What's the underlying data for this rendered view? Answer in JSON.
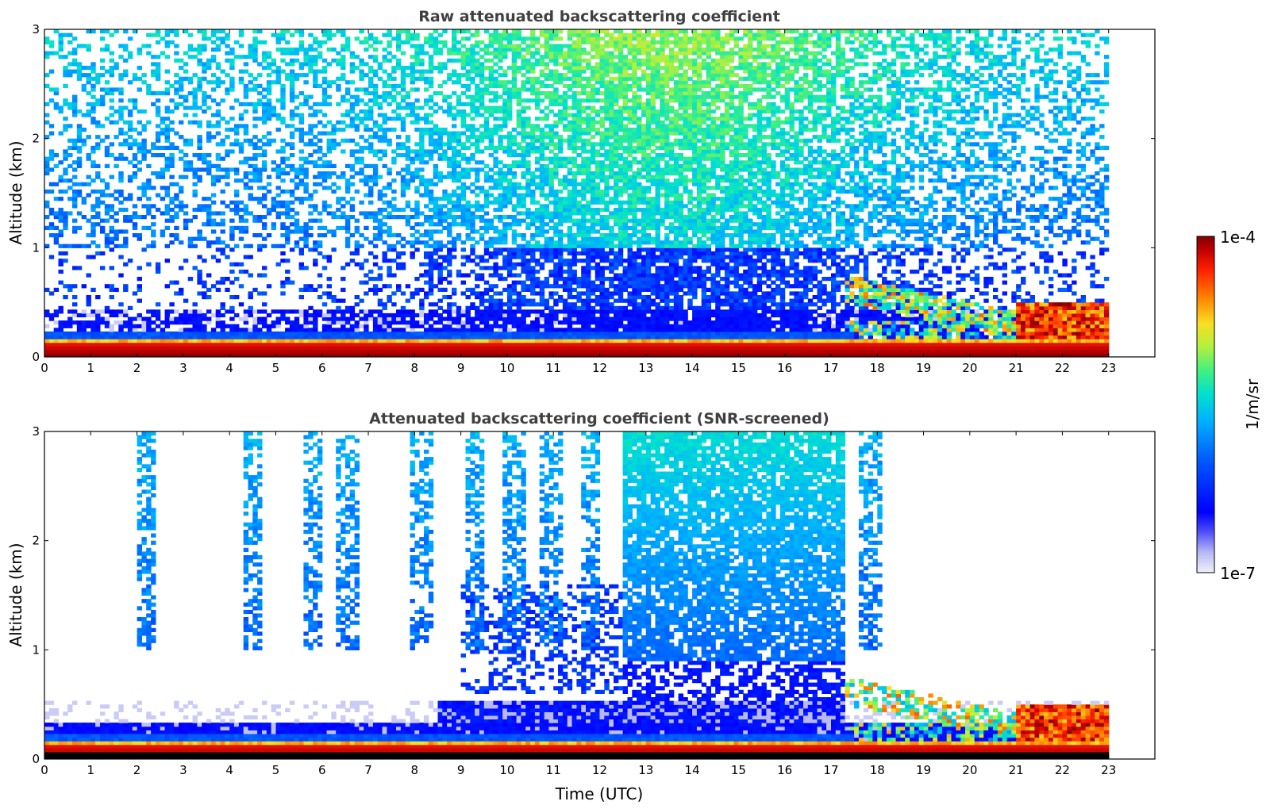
{
  "chart_data": [
    {
      "type": "heatmap",
      "title": "Raw attenuated backscattering coefficient",
      "xlabel": "",
      "ylabel": "Altitude (km)",
      "xlim": [
        0,
        24
      ],
      "ylim": [
        0,
        3
      ],
      "xticks": [
        "0",
        "1",
        "2",
        "3",
        "4",
        "5",
        "6",
        "7",
        "8",
        "9",
        "10",
        "11",
        "12",
        "13",
        "14",
        "15",
        "16",
        "17",
        "18",
        "19",
        "20",
        "21",
        "22",
        "23"
      ],
      "yticks": [
        "0",
        "1",
        "2",
        "3"
      ],
      "data_end_hour": 23,
      "screened": false
    },
    {
      "type": "heatmap",
      "title": "Attenuated backscattering coefficient (SNR-screened)",
      "xlabel": "Time (UTC)",
      "ylabel": "Altitude (km)",
      "xlim": [
        0,
        24
      ],
      "ylim": [
        0,
        3
      ],
      "xticks": [
        "0",
        "1",
        "2",
        "3",
        "4",
        "5",
        "6",
        "7",
        "8",
        "9",
        "10",
        "11",
        "12",
        "13",
        "14",
        "15",
        "16",
        "17",
        "18",
        "19",
        "20",
        "21",
        "22",
        "23"
      ],
      "yticks": [
        "0",
        "1",
        "2",
        "3"
      ],
      "data_end_hour": 23,
      "screened": true
    }
  ],
  "colorbar": {
    "label": "1/m/sr",
    "max_label": "1e-4",
    "min_label": "1e-7",
    "scale": "log",
    "range": [
      1e-07,
      0.0001
    ],
    "colormap": [
      "#e8e8fa",
      "#9a9af0",
      "#0000ff",
      "#0050ff",
      "#00a0ff",
      "#00d8e8",
      "#30f0a0",
      "#a0f050",
      "#f0e020",
      "#ff8000",
      "#ff2000",
      "#c00000",
      "#800000"
    ]
  }
}
